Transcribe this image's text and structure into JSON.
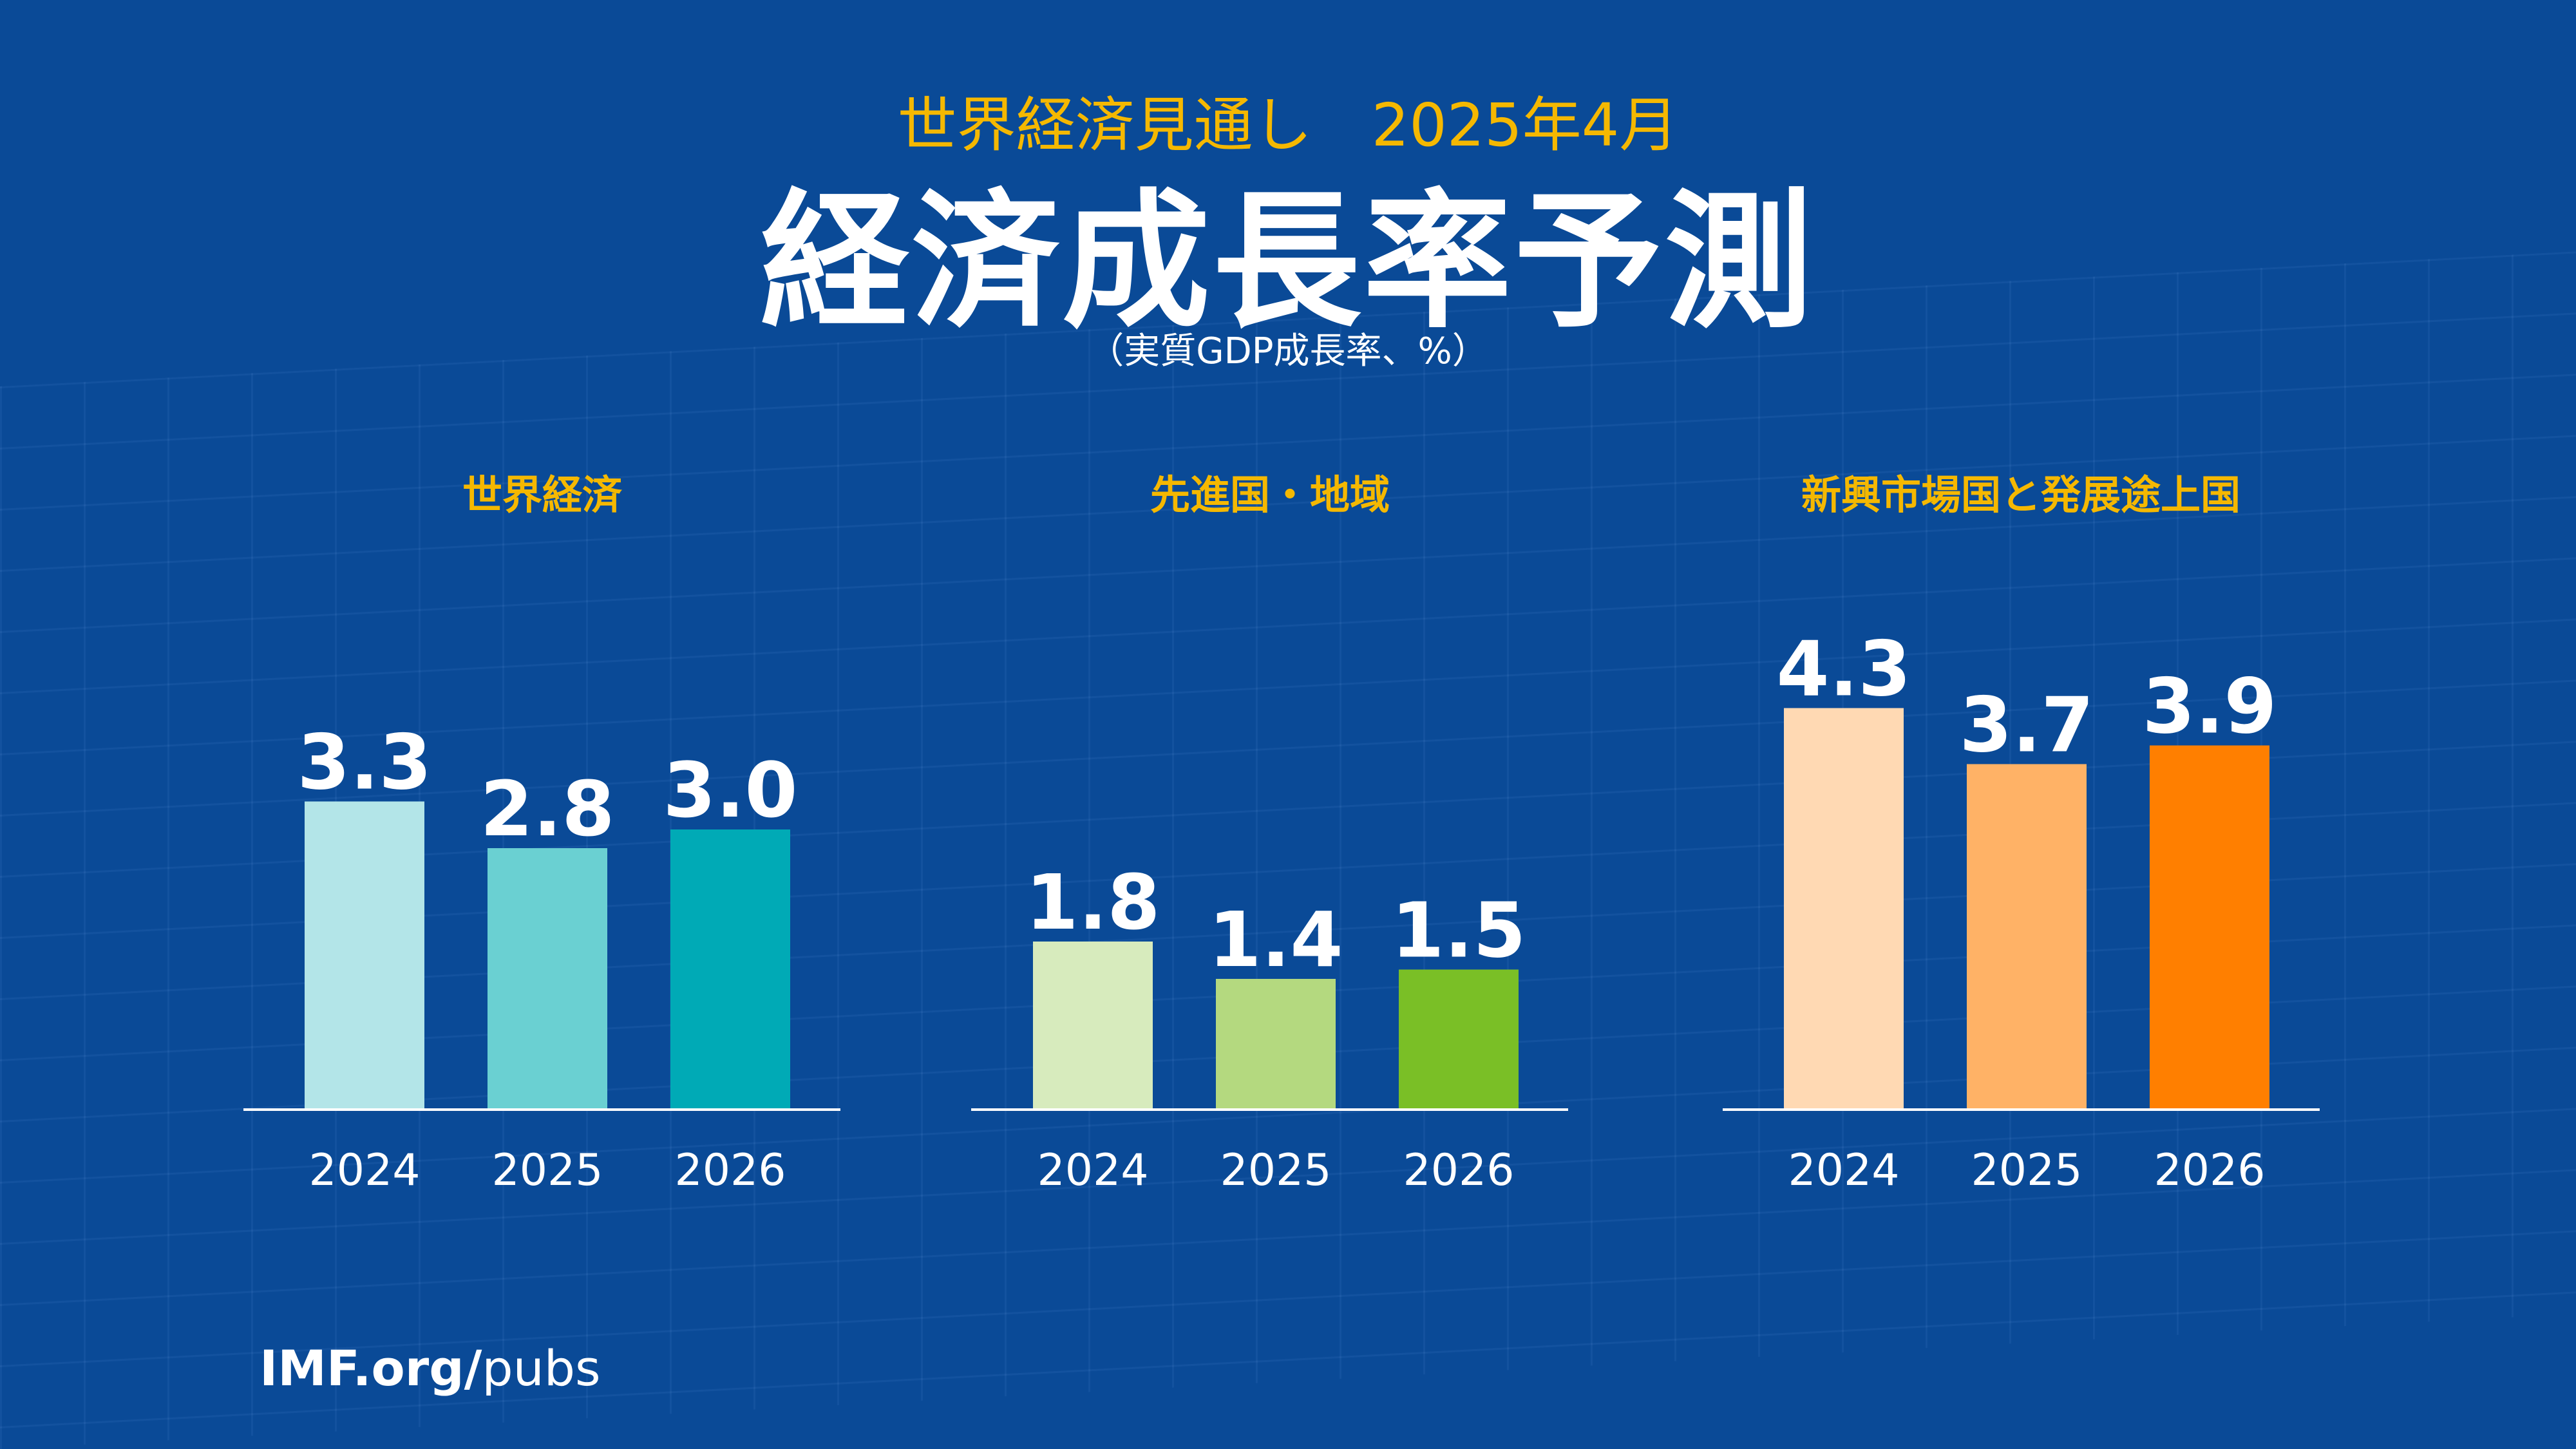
{
  "header": {
    "subtitle": "世界経済見通し　2025年4月",
    "title": "経済成長率予測",
    "units": "（実質GDP成長率、%）"
  },
  "footer": {
    "source_bold": "IMF.org/",
    "source_rest": "pubs"
  },
  "colors": {
    "background": "#0a4a97",
    "panel_title": "#f5b800",
    "text": "#ffffff",
    "axis": "#ffffff"
  },
  "chart_data": [
    {
      "type": "bar",
      "title": "世界経済",
      "categories": [
        "2024",
        "2025",
        "2026"
      ],
      "values": [
        3.3,
        2.8,
        3.0
      ],
      "value_labels": [
        "3.3",
        "2.8",
        "3.0"
      ],
      "colors": [
        "#b3e5e8",
        "#6ad0d2",
        "#00aab6"
      ],
      "ylim": [
        0,
        5
      ]
    },
    {
      "type": "bar",
      "title": "先進国・地域",
      "categories": [
        "2024",
        "2025",
        "2026"
      ],
      "values": [
        1.8,
        1.4,
        1.5
      ],
      "value_labels": [
        "1.8",
        "1.4",
        "1.5"
      ],
      "colors": [
        "#d7ebbd",
        "#b4d97f",
        "#7abf26"
      ],
      "ylim": [
        0,
        5
      ]
    },
    {
      "type": "bar",
      "title": "新興市場国と発展途上国",
      "categories": [
        "2024",
        "2025",
        "2026"
      ],
      "values": [
        4.3,
        3.7,
        3.9
      ],
      "value_labels": [
        "4.3",
        "3.7",
        "3.9"
      ],
      "colors": [
        "#ffd9b3",
        "#ffb266",
        "#ff7f00"
      ],
      "ylim": [
        0,
        5
      ]
    }
  ]
}
